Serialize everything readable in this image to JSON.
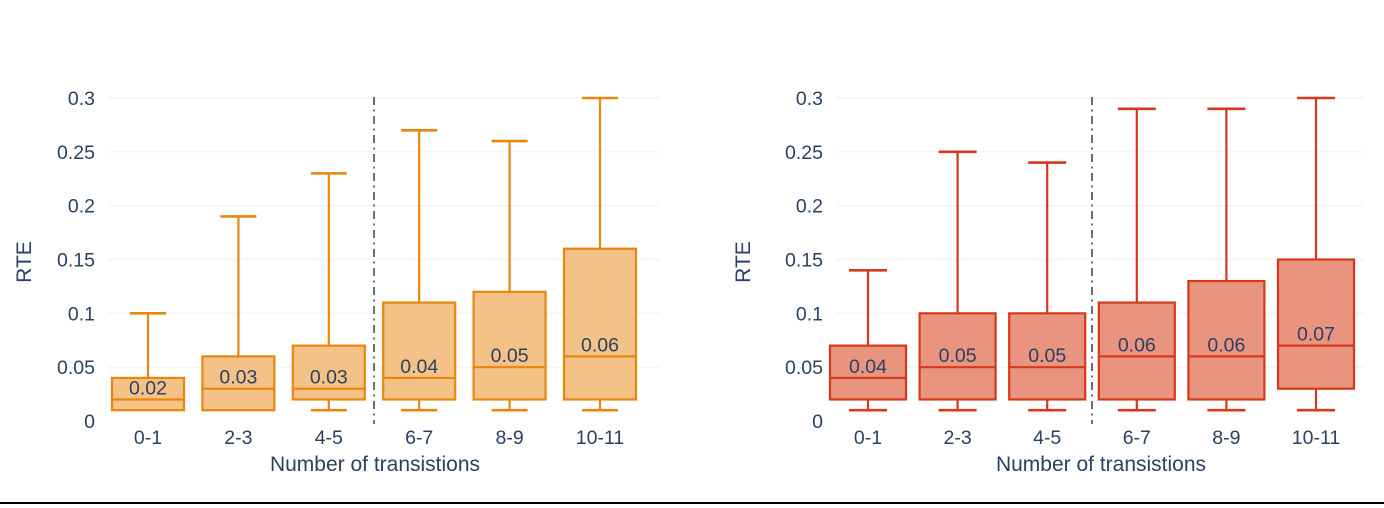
{
  "page": {
    "background": "#ffffff",
    "text_color": "#2b4162",
    "gridline_color": "#f6f4f1",
    "bottom_rule_color": "#000000"
  },
  "chart_data": [
    {
      "type": "box",
      "title": "",
      "ylabel": "RTE",
      "xlabel": "Number of transistions",
      "categories": [
        "0-1",
        "2-3",
        "4-5",
        "6-7",
        "8-9",
        "10-11"
      ],
      "yticks": [
        0,
        0.05,
        0.1,
        0.15,
        0.2,
        0.25,
        0.3
      ],
      "ytick_labels": [
        "0",
        "0.05",
        "0.1",
        "0.15",
        "0.2",
        "0.25",
        "0.3"
      ],
      "ylim": [
        0,
        0.3
      ],
      "grid": true,
      "legend": "none",
      "separator_after_category": "4-5",
      "separator_style": "dash-dot-vertical",
      "separator_color": "#6e6e6e",
      "line_color": "#e8860d",
      "fill_color": "#f4c286",
      "boxes": [
        {
          "category": "0-1",
          "whisker_low": 0.01,
          "q1": 0.01,
          "median": 0.02,
          "q3": 0.04,
          "whisker_high": 0.1,
          "median_label": "0.02"
        },
        {
          "category": "2-3",
          "whisker_low": 0.01,
          "q1": 0.01,
          "median": 0.03,
          "q3": 0.06,
          "whisker_high": 0.19,
          "median_label": "0.03"
        },
        {
          "category": "4-5",
          "whisker_low": 0.01,
          "q1": 0.02,
          "median": 0.03,
          "q3": 0.07,
          "whisker_high": 0.23,
          "median_label": "0.03"
        },
        {
          "category": "6-7",
          "whisker_low": 0.01,
          "q1": 0.02,
          "median": 0.04,
          "q3": 0.11,
          "whisker_high": 0.27,
          "median_label": "0.04"
        },
        {
          "category": "8-9",
          "whisker_low": 0.01,
          "q1": 0.02,
          "median": 0.05,
          "q3": 0.12,
          "whisker_high": 0.26,
          "median_label": "0.05"
        },
        {
          "category": "10-11",
          "whisker_low": 0.01,
          "q1": 0.02,
          "median": 0.06,
          "q3": 0.16,
          "whisker_high": 0.3,
          "median_label": "0.06"
        }
      ]
    },
    {
      "type": "box",
      "title": "",
      "ylabel": "RTE",
      "xlabel": "Number of transistions",
      "categories": [
        "0-1",
        "2-3",
        "4-5",
        "6-7",
        "8-9",
        "10-11"
      ],
      "yticks": [
        0,
        0.05,
        0.1,
        0.15,
        0.2,
        0.25,
        0.3
      ],
      "ytick_labels": [
        "0",
        "0.05",
        "0.1",
        "0.15",
        "0.2",
        "0.25",
        "0.3"
      ],
      "ylim": [
        0,
        0.3
      ],
      "grid": true,
      "legend": "none",
      "separator_after_category": "4-5",
      "separator_style": "dash-dot-vertical",
      "separator_color": "#6e6e6e",
      "line_color": "#d5381b",
      "fill_color": "#e8947f",
      "boxes": [
        {
          "category": "0-1",
          "whisker_low": 0.01,
          "q1": 0.02,
          "median": 0.04,
          "q3": 0.07,
          "whisker_high": 0.14,
          "median_label": "0.04"
        },
        {
          "category": "2-3",
          "whisker_low": 0.01,
          "q1": 0.02,
          "median": 0.05,
          "q3": 0.1,
          "whisker_high": 0.25,
          "median_label": "0.05"
        },
        {
          "category": "4-5",
          "whisker_low": 0.01,
          "q1": 0.02,
          "median": 0.05,
          "q3": 0.1,
          "whisker_high": 0.24,
          "median_label": "0.05"
        },
        {
          "category": "6-7",
          "whisker_low": 0.01,
          "q1": 0.02,
          "median": 0.06,
          "q3": 0.11,
          "whisker_high": 0.29,
          "median_label": "0.06"
        },
        {
          "category": "8-9",
          "whisker_low": 0.01,
          "q1": 0.02,
          "median": 0.06,
          "q3": 0.13,
          "whisker_high": 0.29,
          "median_label": "0.06"
        },
        {
          "category": "10-11",
          "whisker_low": 0.01,
          "q1": 0.03,
          "median": 0.07,
          "q3": 0.15,
          "whisker_high": 0.3,
          "median_label": "0.07"
        }
      ]
    }
  ]
}
